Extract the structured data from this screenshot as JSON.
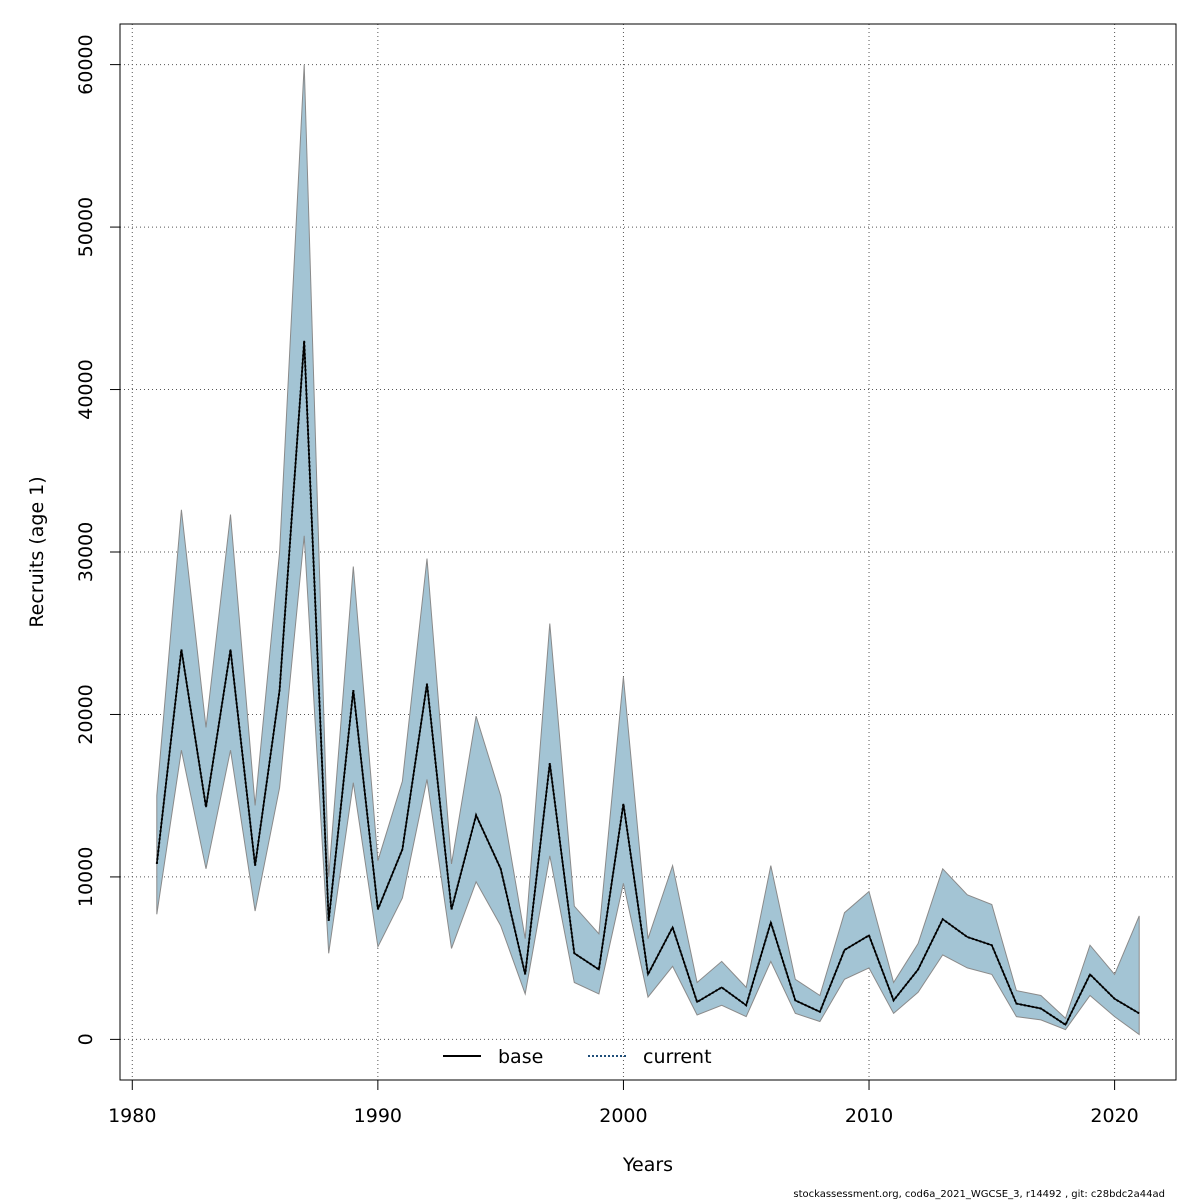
{
  "chart_data": {
    "type": "area",
    "xlabel": "Years",
    "ylabel": "Recruits (age 1)",
    "xlim": [
      1979.5,
      2022.5
    ],
    "ylim": [
      -2500,
      62500
    ],
    "x_ticks": [
      1980,
      1990,
      2000,
      2010,
      2020
    ],
    "y_ticks": [
      0,
      10000,
      20000,
      30000,
      40000,
      50000,
      60000
    ],
    "x_tick_labels": [
      "1980",
      "1990",
      "2000",
      "2010",
      "2020"
    ],
    "y_tick_labels": [
      "0",
      "10000",
      "20000",
      "30000",
      "40000",
      "50000",
      "60000"
    ],
    "grid": true,
    "legend_position": "bottom",
    "legend": [
      {
        "name": "base",
        "style": "solid",
        "color": "#000000"
      },
      {
        "name": "current",
        "style": "dotted",
        "color": "#1f4e79"
      }
    ],
    "x": [
      1981,
      1982,
      1983,
      1984,
      1985,
      1986,
      1987,
      1988,
      1989,
      1990,
      1991,
      1992,
      1993,
      1994,
      1995,
      1996,
      1997,
      1998,
      1999,
      2000,
      2001,
      2002,
      2003,
      2004,
      2005,
      2006,
      2007,
      2008,
      2009,
      2010,
      2011,
      2012,
      2013,
      2014,
      2015,
      2016,
      2017,
      2018,
      2019,
      2020,
      2021
    ],
    "series": [
      {
        "name": "base",
        "values": [
          10800,
          24000,
          14300,
          24000,
          10700,
          21500,
          43000,
          7300,
          21500,
          8000,
          11700,
          21900,
          8000,
          13800,
          10500,
          4000,
          17000,
          5300,
          4300,
          14500,
          4000,
          6900,
          2300,
          3200,
          2100,
          7200,
          2400,
          1700,
          5500,
          6400,
          2400,
          4300,
          7400,
          6300,
          5800,
          2200,
          1900,
          900,
          4000,
          2500,
          1600
        ]
      },
      {
        "name": "current",
        "values": [
          10800,
          24000,
          14300,
          24000,
          10700,
          21500,
          43000,
          7300,
          21500,
          8000,
          11700,
          21900,
          8000,
          13800,
          10500,
          4000,
          17000,
          5300,
          4300,
          14500,
          4000,
          6900,
          2300,
          3200,
          2100,
          7200,
          2400,
          1700,
          5500,
          6400,
          2400,
          4300,
          7400,
          6300,
          5800,
          2200,
          1900,
          900,
          4000,
          2500,
          1600
        ]
      }
    ],
    "band": {
      "lower": [
        7700,
        17800,
        10500,
        17800,
        7900,
        15500,
        31000,
        5300,
        15800,
        5700,
        8700,
        16000,
        5600,
        9700,
        7000,
        2800,
        11300,
        3500,
        2800,
        9600,
        2600,
        4500,
        1500,
        2100,
        1400,
        4800,
        1600,
        1100,
        3700,
        4400,
        1600,
        2900,
        5200,
        4400,
        4000,
        1400,
        1200,
        600,
        2700,
        1400,
        300
      ],
      "upper": [
        15000,
        32600,
        19200,
        32300,
        14400,
        30000,
        60000,
        10000,
        29100,
        11000,
        15900,
        29600,
        10800,
        19900,
        15000,
        6200,
        25600,
        8200,
        6500,
        22300,
        6200,
        10700,
        3500,
        4800,
        3200,
        10700,
        3700,
        2700,
        7800,
        9100,
        3500,
        5900,
        10500,
        8900,
        8300,
        3000,
        2700,
        1300,
        5800,
        4000,
        7600
      ],
      "fill": "#a3c4d4",
      "stroke": "#8a8a8a"
    }
  },
  "footer": "stockassessment.org, cod6a_2021_WGCSE_3, r14492 , git: c28bdc2a44ad"
}
